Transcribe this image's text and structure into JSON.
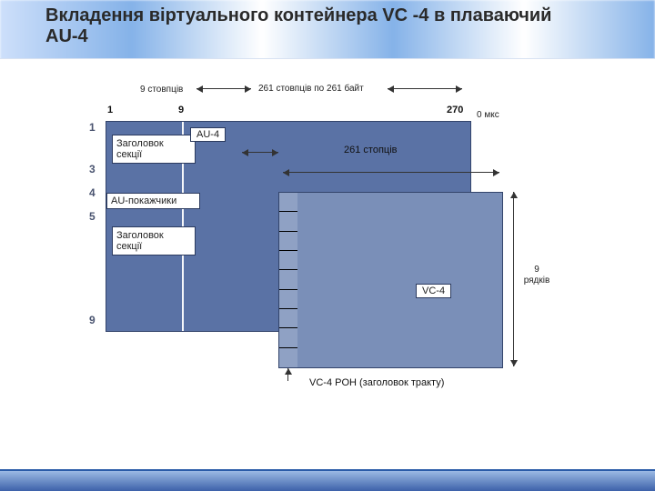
{
  "title": "Вкладення віртуального контейнера VC -4 в плаваючий AU-4",
  "title_fontsize": 20,
  "colors": {
    "au4_fill": "#5a72a5",
    "vc4_fill": "#7a8fb8",
    "poh_fill": "#8fa1c4",
    "border": "#33446b",
    "bg": "#ffffff"
  },
  "top": {
    "cols_left_label": "9 стовпців",
    "cols_mid_label": "261 стовпців по 261 байт",
    "col_1": "1",
    "col_9": "9",
    "col_270": "270",
    "time_label": "0 мкс"
  },
  "rows": [
    "1",
    "3",
    "4",
    "5",
    "9"
  ],
  "au4": {
    "label": "AU-4",
    "section_header_top": "Заголовок секції",
    "au_pointers": "AU-покажчики",
    "section_header_bottom": "Заголовок секції"
  },
  "mid": {
    "cols_261_label": "261 стопців"
  },
  "vc4": {
    "label": "VC-4",
    "rows_label": "9 рядків",
    "poh_rows": 9,
    "poh_caption": "VC-4 POH (заголовок тракту)"
  }
}
